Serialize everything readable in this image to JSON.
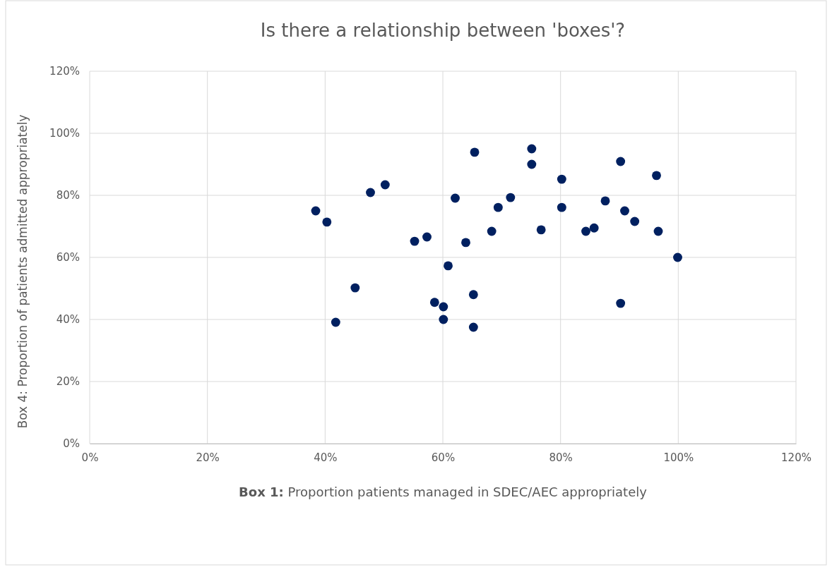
{
  "chart_data": {
    "type": "scatter",
    "title": "Is there a relationship between 'boxes'?",
    "xlabel": "Box 1: Proportion patients managed in SDEC/AEC appropriately",
    "ylabel": "Box 4: Proportion of patients admitted appropriately",
    "x": [
      38.4,
      40.3,
      41.8,
      45.1,
      47.7,
      50.2,
      55.2,
      57.3,
      60.1,
      60.1,
      58.6,
      60.9,
      62.1,
      63.9,
      65.2,
      65.2,
      65.4,
      68.3,
      69.4,
      71.5,
      75.1,
      75.1,
      76.7,
      80.2,
      80.2,
      84.3,
      85.7,
      87.6,
      90.2,
      90.9,
      92.6,
      96.3,
      96.6,
      99.9,
      90.2
    ],
    "series": [
      {
        "color": "#002060",
        "values": [
          75.0,
          71.4,
          39.1,
          50.2,
          80.9,
          83.4,
          65.2,
          66.6,
          40.0,
          44.1,
          45.5,
          57.3,
          79.1,
          64.8,
          48.0,
          37.5,
          93.9,
          68.4,
          76.1,
          79.3,
          95.0,
          90.0,
          68.9,
          85.2,
          76.1,
          68.4,
          69.5,
          78.2,
          90.9,
          75.0,
          71.6,
          86.4,
          68.4,
          60.0,
          45.2
        ]
      }
    ],
    "xlim": [
      0,
      120
    ],
    "ylim": [
      0,
      120
    ],
    "xticks": [
      {
        "value": 0,
        "label": "0%"
      },
      {
        "value": 20,
        "label": "20%"
      },
      {
        "value": 40,
        "label": "40%"
      },
      {
        "value": 60,
        "label": "60%"
      },
      {
        "value": 80,
        "label": "80%"
      },
      {
        "value": 100,
        "label": "100%"
      },
      {
        "value": 120,
        "label": "120%"
      }
    ],
    "yticks": [
      {
        "value": 0,
        "label": "0%"
      },
      {
        "value": 20,
        "label": "20%"
      },
      {
        "value": 40,
        "label": "40%"
      },
      {
        "value": 60,
        "label": "60%"
      },
      {
        "value": 80,
        "label": "80%"
      },
      {
        "value": 100,
        "label": "100%"
      },
      {
        "value": 120,
        "label": "120%"
      }
    ],
    "grid": true,
    "marker": "circle"
  }
}
